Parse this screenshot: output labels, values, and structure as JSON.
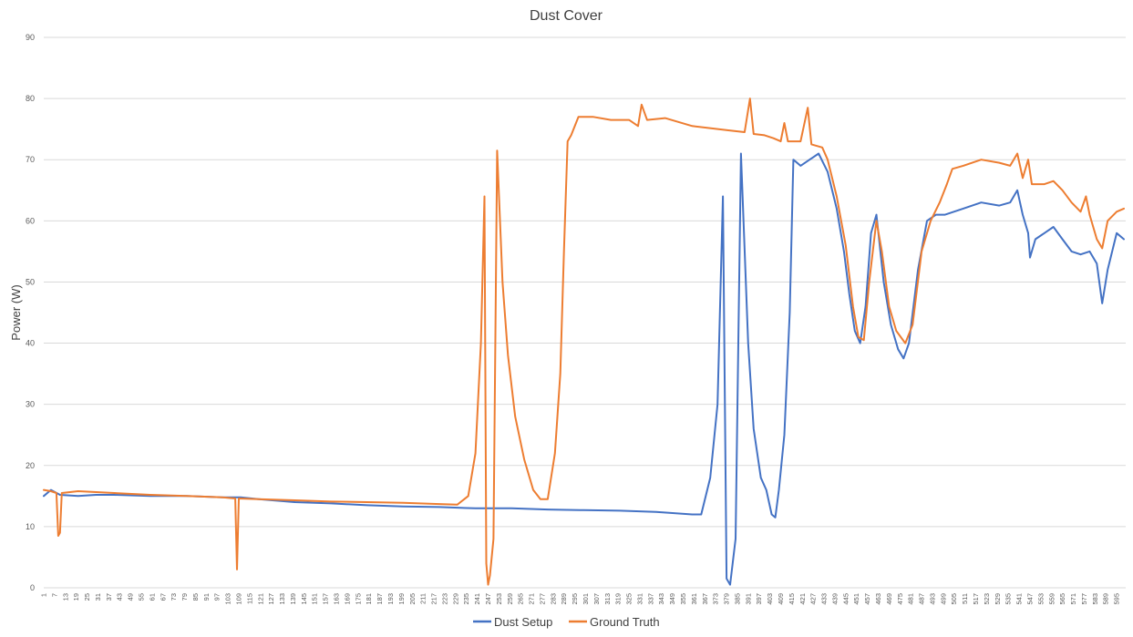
{
  "chart_data": {
    "type": "line",
    "title": "Dust Cover",
    "xlabel": "",
    "ylabel": "Power (W)",
    "ylim": [
      0,
      90
    ],
    "yticks": [
      0,
      10,
      20,
      30,
      40,
      50,
      60,
      70,
      80,
      90
    ],
    "xlim": [
      1,
      600
    ],
    "xticks_start": 1,
    "xticks_step": 6,
    "xticks_end": 595,
    "grid": true,
    "legend_position": "bottom",
    "series": [
      {
        "name": "Dust Setup",
        "color": "#4472C4",
        "points": [
          [
            1,
            15
          ],
          [
            5,
            16
          ],
          [
            10,
            15.2
          ],
          [
            20,
            15
          ],
          [
            30,
            15.2
          ],
          [
            40,
            15.2
          ],
          [
            60,
            15
          ],
          [
            80,
            15
          ],
          [
            100,
            14.8
          ],
          [
            110,
            14.8
          ],
          [
            120,
            14.5
          ],
          [
            140,
            14
          ],
          [
            160,
            13.8
          ],
          [
            180,
            13.5
          ],
          [
            200,
            13.3
          ],
          [
            220,
            13.2
          ],
          [
            240,
            13
          ],
          [
            260,
            13
          ],
          [
            280,
            12.8
          ],
          [
            300,
            12.7
          ],
          [
            320,
            12.6
          ],
          [
            340,
            12.4
          ],
          [
            360,
            12
          ],
          [
            365,
            12
          ],
          [
            370,
            18
          ],
          [
            374,
            30
          ],
          [
            377,
            64
          ],
          [
            379,
            1.5
          ],
          [
            381,
            0.5
          ],
          [
            384,
            8
          ],
          [
            387,
            71
          ],
          [
            391,
            40
          ],
          [
            394,
            26
          ],
          [
            398,
            18
          ],
          [
            401,
            16
          ],
          [
            404,
            12
          ],
          [
            406,
            11.5
          ],
          [
            408,
            16
          ],
          [
            411,
            25
          ],
          [
            414,
            45
          ],
          [
            416,
            70
          ],
          [
            420,
            69
          ],
          [
            425,
            70
          ],
          [
            430,
            71
          ],
          [
            435,
            68
          ],
          [
            440,
            62
          ],
          [
            444,
            55
          ],
          [
            447,
            48
          ],
          [
            450,
            42
          ],
          [
            453,
            40
          ],
          [
            456,
            46
          ],
          [
            459,
            58
          ],
          [
            462,
            61
          ],
          [
            466,
            50
          ],
          [
            470,
            43
          ],
          [
            474,
            39
          ],
          [
            477,
            37.5
          ],
          [
            480,
            40
          ],
          [
            485,
            52
          ],
          [
            490,
            60
          ],
          [
            495,
            61
          ],
          [
            500,
            61
          ],
          [
            510,
            62
          ],
          [
            520,
            63
          ],
          [
            530,
            62.5
          ],
          [
            536,
            63
          ],
          [
            540,
            65
          ],
          [
            543,
            61
          ],
          [
            546,
            58
          ],
          [
            547,
            54
          ],
          [
            550,
            57
          ],
          [
            555,
            58
          ],
          [
            560,
            59
          ],
          [
            565,
            57
          ],
          [
            570,
            55
          ],
          [
            575,
            54.5
          ],
          [
            580,
            55
          ],
          [
            584,
            53
          ],
          [
            587,
            46.5
          ],
          [
            590,
            52
          ],
          [
            595,
            58
          ],
          [
            599,
            57
          ]
        ]
      },
      {
        "name": "Ground Truth",
        "color": "#ED7D31",
        "points": [
          [
            1,
            16
          ],
          [
            5,
            15.8
          ],
          [
            8,
            15.5
          ],
          [
            9,
            8.5
          ],
          [
            10,
            9
          ],
          [
            11,
            15.5
          ],
          [
            20,
            15.8
          ],
          [
            40,
            15.5
          ],
          [
            60,
            15.2
          ],
          [
            80,
            15
          ],
          [
            100,
            14.8
          ],
          [
            107,
            14.6
          ],
          [
            108,
            3
          ],
          [
            109,
            14.6
          ],
          [
            120,
            14.5
          ],
          [
            140,
            14.3
          ],
          [
            160,
            14.1
          ],
          [
            180,
            14
          ],
          [
            200,
            13.9
          ],
          [
            220,
            13.7
          ],
          [
            230,
            13.6
          ],
          [
            236,
            15
          ],
          [
            240,
            22
          ],
          [
            243,
            40
          ],
          [
            245,
            64
          ],
          [
            246,
            4
          ],
          [
            247,
            0.5
          ],
          [
            248,
            2
          ],
          [
            250,
            8
          ],
          [
            252,
            71.5
          ],
          [
            255,
            50
          ],
          [
            258,
            38
          ],
          [
            262,
            28
          ],
          [
            267,
            21
          ],
          [
            272,
            16
          ],
          [
            276,
            14.5
          ],
          [
            280,
            14.5
          ],
          [
            284,
            22
          ],
          [
            287,
            35
          ],
          [
            289,
            55
          ],
          [
            291,
            73
          ],
          [
            293,
            74
          ],
          [
            297,
            77
          ],
          [
            305,
            77
          ],
          [
            315,
            76.5
          ],
          [
            325,
            76.5
          ],
          [
            330,
            75.5
          ],
          [
            332,
            79
          ],
          [
            335,
            76.5
          ],
          [
            345,
            76.8
          ],
          [
            360,
            75.5
          ],
          [
            380,
            74.8
          ],
          [
            389,
            74.5
          ],
          [
            392,
            80
          ],
          [
            394,
            74.2
          ],
          [
            400,
            74
          ],
          [
            405,
            73.5
          ],
          [
            409,
            73
          ],
          [
            411,
            76
          ],
          [
            413,
            73
          ],
          [
            420,
            73
          ],
          [
            424,
            78.5
          ],
          [
            426,
            72.5
          ],
          [
            432,
            72
          ],
          [
            435,
            70
          ],
          [
            440,
            64
          ],
          [
            445,
            56
          ],
          [
            449,
            46
          ],
          [
            452,
            41
          ],
          [
            455,
            40.5
          ],
          [
            458,
            50
          ],
          [
            462,
            60
          ],
          [
            465,
            55
          ],
          [
            469,
            46
          ],
          [
            473,
            42
          ],
          [
            478,
            40
          ],
          [
            482,
            43
          ],
          [
            487,
            55
          ],
          [
            492,
            60
          ],
          [
            497,
            63
          ],
          [
            501,
            66
          ],
          [
            504,
            68.5
          ],
          [
            510,
            69
          ],
          [
            520,
            70
          ],
          [
            530,
            69.5
          ],
          [
            536,
            69
          ],
          [
            540,
            71
          ],
          [
            543,
            67
          ],
          [
            546,
            70
          ],
          [
            548,
            66
          ],
          [
            555,
            66
          ],
          [
            560,
            66.5
          ],
          [
            565,
            65
          ],
          [
            570,
            63
          ],
          [
            575,
            61.5
          ],
          [
            578,
            64
          ],
          [
            580,
            61
          ],
          [
            584,
            57
          ],
          [
            587,
            55.5
          ],
          [
            590,
            60
          ],
          [
            595,
            61.5
          ],
          [
            599,
            62
          ]
        ]
      }
    ]
  }
}
